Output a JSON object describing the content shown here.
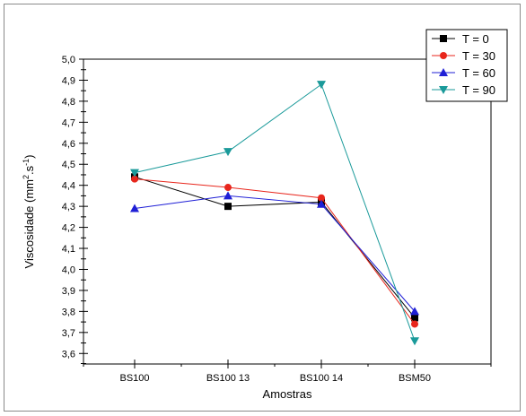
{
  "chart_data": {
    "type": "line",
    "categories": [
      "BS100",
      "BS100 13",
      "BS100 14",
      "BSM50"
    ],
    "xlabel": "Amostras",
    "ylabel_parts": {
      "prefix": "Viscosidade (mm",
      "sup1": "2",
      "mid": ".s",
      "sup2": "-1",
      "suffix": ")"
    },
    "ylim": [
      3.55,
      5.0
    ],
    "yticks": [
      "3,6",
      "3,7",
      "3,8",
      "3,9",
      "4,0",
      "4,1",
      "4,2",
      "4,3",
      "4,4",
      "4,5",
      "4,6",
      "4,7",
      "4,8",
      "4,9",
      "5,0"
    ],
    "legend_position": "top-right",
    "series": [
      {
        "name": "T = 0",
        "values": [
          4.44,
          4.3,
          4.32,
          3.77
        ],
        "color": "#000000",
        "marker": "square"
      },
      {
        "name": "T = 30",
        "values": [
          4.43,
          4.39,
          4.34,
          3.74
        ],
        "color": "#e8261c",
        "marker": "circle"
      },
      {
        "name": "T = 60",
        "values": [
          4.29,
          4.35,
          4.31,
          3.8
        ],
        "color": "#1f1fd6",
        "marker": "triangle-up"
      },
      {
        "name": "T = 90",
        "values": [
          4.46,
          4.56,
          4.88,
          3.66
        ],
        "color": "#1a9a9a",
        "marker": "triangle-down"
      }
    ]
  }
}
